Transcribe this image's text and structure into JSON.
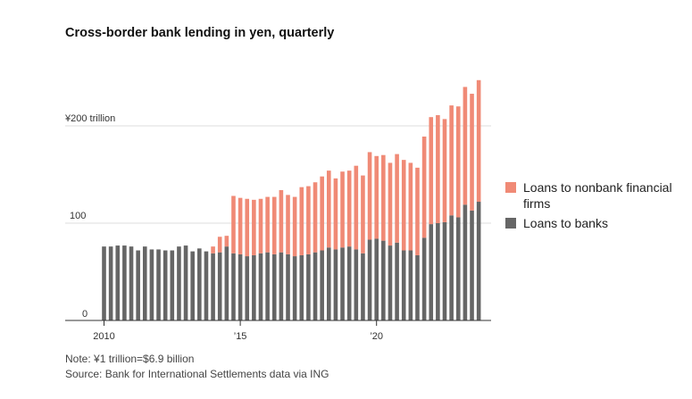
{
  "header": {
    "title": "Cross-border bank lending in yen, quarterly"
  },
  "legend": {
    "items": [
      {
        "label": "Loans to nonbank financial firms",
        "color": "#f08a76"
      },
      {
        "label": "Loans to banks",
        "color": "#666666"
      }
    ]
  },
  "footer": {
    "note": "Note: ¥1 trillion=$6.9 billion",
    "source": "Source: Bank for International Settlements data via ING"
  },
  "chart_data": {
    "type": "bar",
    "stacked": true,
    "title": "Cross-border bank lending in yen, quarterly",
    "xlabel": "",
    "ylabel": "",
    "ylim": [
      0,
      250
    ],
    "grid": true,
    "legend_position": "right",
    "y_ticks": [
      {
        "value": 0,
        "label": "0"
      },
      {
        "value": 100,
        "label": "100"
      },
      {
        "value": 200,
        "label": "¥200 trillion"
      }
    ],
    "x_ticks": [
      {
        "index": 0,
        "label": "2010"
      },
      {
        "index": 20,
        "label": "’15"
      },
      {
        "index": 40,
        "label": "’20"
      }
    ],
    "categories": [
      "2010 Q1",
      "2010 Q2",
      "2010 Q3",
      "2010 Q4",
      "2011 Q1",
      "2011 Q2",
      "2011 Q3",
      "2011 Q4",
      "2012 Q1",
      "2012 Q2",
      "2012 Q3",
      "2012 Q4",
      "2013 Q1",
      "2013 Q2",
      "2013 Q3",
      "2013 Q4",
      "2014 Q1",
      "2014 Q2",
      "2014 Q3",
      "2014 Q4",
      "2015 Q1",
      "2015 Q2",
      "2015 Q3",
      "2015 Q4",
      "2016 Q1",
      "2016 Q2",
      "2016 Q3",
      "2016 Q4",
      "2017 Q1",
      "2017 Q2",
      "2017 Q3",
      "2017 Q4",
      "2018 Q1",
      "2018 Q2",
      "2018 Q3",
      "2018 Q4",
      "2019 Q1",
      "2019 Q2",
      "2019 Q3",
      "2019 Q4",
      "2020 Q1",
      "2020 Q2",
      "2020 Q3",
      "2020 Q4",
      "2021 Q1",
      "2021 Q2",
      "2021 Q3",
      "2021 Q4",
      "2022 Q1",
      "2022 Q2",
      "2022 Q3",
      "2022 Q4",
      "2023 Q1",
      "2023 Q2",
      "2023 Q3",
      "2023 Q4"
    ],
    "series": [
      {
        "name": "Loans to banks",
        "color": "#666666",
        "values": [
          76,
          76,
          77,
          77,
          76,
          72,
          76,
          73,
          73,
          72,
          72,
          76,
          77,
          71,
          74,
          71,
          69,
          70,
          76,
          69,
          68,
          66,
          67,
          69,
          70,
          68,
          70,
          68,
          66,
          67,
          68,
          70,
          72,
          75,
          73,
          75,
          76,
          73,
          69,
          83,
          84,
          82,
          77,
          80,
          72,
          72,
          67,
          85,
          99,
          100,
          101,
          108,
          106,
          119,
          113,
          122
        ]
      },
      {
        "name": "Loans to nonbank financial firms",
        "color": "#f08a76",
        "values": [
          0,
          0,
          0,
          0,
          0,
          0,
          0,
          0,
          0,
          0,
          0,
          0,
          0,
          0,
          0,
          0,
          7,
          16,
          11,
          59,
          58,
          59,
          57,
          56,
          57,
          59,
          64,
          61,
          61,
          70,
          70,
          72,
          76,
          79,
          73,
          78,
          78,
          86,
          80,
          90,
          85,
          88,
          85,
          91,
          93,
          90,
          90,
          104,
          110,
          111,
          106,
          113,
          114,
          121,
          120,
          125
        ]
      }
    ]
  }
}
